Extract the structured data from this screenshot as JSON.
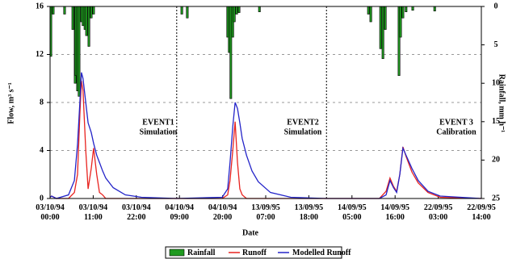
{
  "chart_data": {
    "type": "line",
    "xlabel": "Date",
    "ylabel": "Flow, m³ s⁻¹",
    "y2label": "Rainfall, mm h⁻¹",
    "xlim": [
      0,
      110
    ],
    "xticks": [
      {
        "value": 0,
        "label": "03/10/94 00:00"
      },
      {
        "value": 11,
        "label": "03/10/94 11:00"
      },
      {
        "value": 22,
        "label": "03/10/94 22:00"
      },
      {
        "value": 33,
        "label": "04/10/94 09:00"
      },
      {
        "value": 44,
        "label": "04/10/94 20:00"
      },
      {
        "value": 55,
        "label": "13/09/95 07:00"
      },
      {
        "value": 66,
        "label": "13/09/95 18:00"
      },
      {
        "value": 77,
        "label": "14/09/95 05:00"
      },
      {
        "value": 88,
        "label": "14/09/95 16:00"
      },
      {
        "value": 99,
        "label": "22/09/95 03:00"
      },
      {
        "value": 110,
        "label": "22/09/95 14:00"
      }
    ],
    "ylim": [
      0,
      16
    ],
    "yticks": [
      0,
      4,
      8,
      12,
      16
    ],
    "y2lim": [
      25,
      0
    ],
    "y2ticks": [
      0,
      5,
      10,
      15,
      20,
      25
    ],
    "grid": true,
    "event_dividers": [
      32.3,
      70.5
    ],
    "annotations": [
      [
        "EVENT1",
        "Simulation"
      ],
      [
        "EVENT2",
        "Simulation"
      ],
      [
        "EVENT 3",
        "Calibration"
      ]
    ],
    "series": [
      {
        "name": "Rainfall",
        "type": "bar",
        "axis": "y2",
        "color": "#1f9a1f",
        "x": [
          0.2,
          0.8,
          3.7,
          5.8,
          6.4,
          6.6,
          7.0,
          7.4,
          8.0,
          8.4,
          8.9,
          9.3,
          9.9,
          10.5,
          11.1,
          33.6,
          35.0,
          45.3,
          45.7,
          46.1,
          46.6,
          47.0,
          47.6,
          48.2,
          53.4,
          81.2,
          81.8,
          84.3,
          84.9,
          85.5,
          89.0,
          89.4,
          90.0,
          90.8,
          92.5,
          98.1
        ],
        "values": [
          6.5,
          1,
          1,
          3,
          10,
          9,
          11,
          11.7,
          2,
          2.5,
          3,
          3.8,
          5.2,
          1.5,
          1,
          1,
          1.5,
          4,
          6,
          12,
          4,
          2,
          1,
          0.8,
          0.7,
          1,
          2,
          5.5,
          6.8,
          3,
          9,
          4,
          1.5,
          0.7,
          0.5,
          0.6
        ]
      },
      {
        "name": "Runoff",
        "color": "#e8231f",
        "x": [
          0,
          0.4,
          1.6,
          4.7,
          6.2,
          7.0,
          7.6,
          8.0,
          8.4,
          9.1,
          9.7,
          10.5,
          11.1,
          11.9,
          12.6,
          13.4,
          14.2,
          16.1,
          19.2,
          23.3,
          32.3,
          43.9,
          45.3,
          45.9,
          46.6,
          47.2,
          47.8,
          48.4,
          49.0,
          50.1,
          51.5,
          53.1,
          56.2,
          61.4,
          70.5,
          84.0,
          85.7,
          86.7,
          87.6,
          88.4,
          89.2,
          90.0,
          90.8,
          92.3,
          93.9,
          96.4,
          99.5,
          110
        ],
        "values": [
          0.1,
          0.2,
          0,
          0,
          0.5,
          2,
          7,
          9.8,
          9,
          4,
          0.8,
          2.5,
          4.2,
          2,
          0.5,
          0.3,
          0,
          0,
          0,
          0,
          0,
          0,
          0.3,
          1.5,
          4,
          6.4,
          3,
          0.8,
          0.3,
          0,
          0,
          0,
          0,
          0,
          0,
          0,
          0.6,
          1.7,
          1.0,
          0.6,
          2,
          4.3,
          3.5,
          2.2,
          1.3,
          0.5,
          0.1,
          0
        ]
      },
      {
        "name": "Modelled Runoff",
        "color": "#2424c8",
        "x": [
          0,
          0.4,
          1.6,
          4.7,
          6.2,
          7.0,
          7.6,
          8.0,
          8.4,
          9.1,
          9.7,
          10.5,
          11.1,
          11.9,
          12.6,
          13.4,
          14.2,
          16.1,
          19.2,
          23.3,
          32.3,
          43.9,
          45.3,
          45.9,
          46.6,
          47.2,
          47.8,
          48.4,
          49.0,
          50.1,
          51.5,
          53.1,
          56.2,
          61.4,
          70.5,
          84.0,
          85.7,
          86.7,
          87.6,
          88.4,
          89.2,
          90.0,
          90.8,
          92.3,
          93.9,
          96.4,
          99.5,
          110
        ],
        "values": [
          0.1,
          0.2,
          0,
          0.3,
          1.5,
          4.5,
          8,
          10.5,
          10.0,
          8,
          6.3,
          5.5,
          4.6,
          3.6,
          3,
          2.3,
          1.7,
          0.9,
          0.3,
          0.1,
          0,
          0.1,
          0.8,
          3,
          6,
          8.0,
          7.5,
          6.3,
          5,
          3.6,
          2.3,
          1.4,
          0.5,
          0.1,
          0,
          0,
          0.3,
          1.5,
          0.9,
          0.5,
          2,
          4.2,
          3.6,
          2.5,
          1.5,
          0.6,
          0.2,
          0
        ]
      }
    ]
  }
}
